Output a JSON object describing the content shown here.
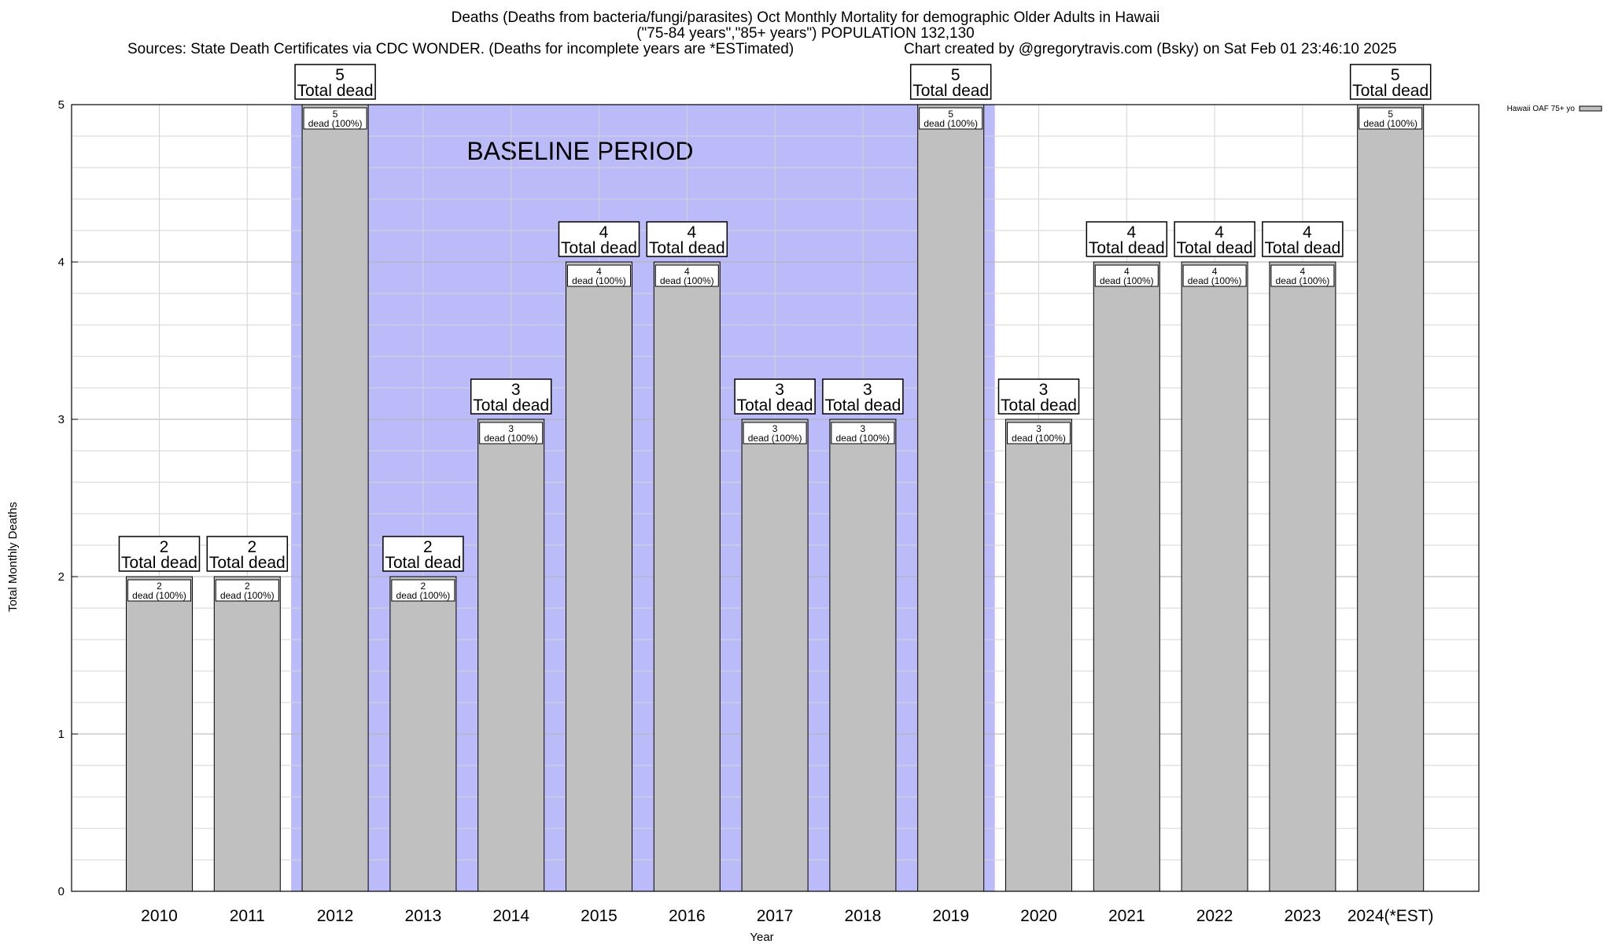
{
  "chart_data": {
    "type": "bar",
    "title": "Deaths (Deaths from bacteria/fungi/parasites) Oct Monthly Mortality for demographic Older Adults in Hawaii",
    "subtitle": "(\"75-84 years\",\"85+ years\") POPULATION 132,130",
    "sources": "Sources: State Death Certificates via CDC WONDER. (Deaths for incomplete years are *ESTimated)",
    "credit": "Chart created by @gregorytravis.com (Bsky) on Sat Feb 01 23:46:10 2025",
    "xlabel": "Year",
    "ylabel": "Total Monthly Deaths",
    "ylim": [
      0,
      5
    ],
    "yticks": [
      0,
      1,
      2,
      3,
      4,
      5
    ],
    "grid": true,
    "legend_position": "top-right",
    "categories": [
      "2010",
      "2011",
      "2012",
      "2013",
      "2014",
      "2015",
      "2016",
      "2017",
      "2018",
      "2019",
      "2020",
      "2021",
      "2022",
      "2023",
      "2024(*EST)"
    ],
    "series": [
      {
        "name": "Hawaii OAF 75+ yo",
        "color": "#c0c0c0",
        "values": [
          2,
          2,
          5,
          2,
          3,
          4,
          4,
          3,
          3,
          5,
          3,
          4,
          4,
          4,
          5
        ]
      }
    ],
    "total_label_text": "Total dead",
    "inner_label_text": "dead (100%)",
    "baseline": {
      "label": "BASELINE PERIOD",
      "start": "2012",
      "end": "2019",
      "color": "#bbbbfa"
    }
  }
}
